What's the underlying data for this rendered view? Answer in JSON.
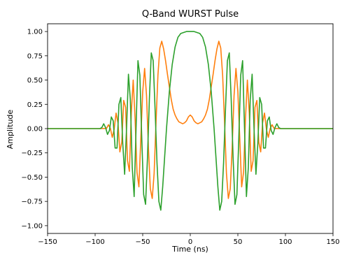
{
  "chart_data": {
    "type": "line",
    "title": "Q-Band WURST Pulse",
    "xlabel": "Time (ns)",
    "ylabel": "Amplitude",
    "xlim": [
      -150,
      150
    ],
    "ylim": [
      -1.08,
      1.08
    ],
    "grid": false,
    "xticks": [
      -150,
      -100,
      -50,
      0,
      50,
      100,
      150
    ],
    "yticks": [
      -1.0,
      -0.75,
      -0.5,
      -0.25,
      0.0,
      0.25,
      0.5,
      0.75,
      1.0
    ],
    "xtick_labels": [
      "−150",
      "−100",
      "−50",
      "0",
      "50",
      "100",
      "150"
    ],
    "ytick_labels": [
      "−1.00",
      "−0.75",
      "−0.50",
      "−0.25",
      "0.00",
      "0.25",
      "0.50",
      "0.75",
      "1.00"
    ],
    "series": [
      {
        "color": "#ff7f0e",
        "x": [
          -150,
          -100,
          -95,
          -90,
          -88,
          -86,
          -84,
          -82,
          -80,
          -78,
          -76,
          -74,
          -72,
          -70,
          -68,
          -66,
          -64,
          -62,
          -60,
          -58,
          -56,
          -54,
          -52,
          -50,
          -48,
          -46,
          -44,
          -42,
          -40,
          -38,
          -36,
          -34,
          -32,
          -30,
          -28,
          -26,
          -24,
          -22,
          -20,
          -18,
          -16,
          -14,
          -12,
          -10,
          -8,
          -6,
          -4,
          -2,
          0,
          2,
          4,
          6,
          8,
          10,
          12,
          14,
          16,
          18,
          20,
          22,
          24,
          26,
          28,
          30,
          32,
          34,
          36,
          38,
          40,
          42,
          44,
          46,
          48,
          50,
          52,
          54,
          56,
          58,
          60,
          62,
          64,
          66,
          68,
          70,
          72,
          74,
          76,
          78,
          80,
          82,
          84,
          86,
          88,
          90,
          95,
          100,
          150
        ],
        "y": [
          0.0,
          0.0,
          0.0,
          0.001,
          0.003,
          0.04,
          0.003,
          -0.09,
          -0.006,
          0.16,
          0.06,
          -0.24,
          -0.14,
          0.29,
          0.22,
          -0.33,
          -0.44,
          0.16,
          0.5,
          0.1,
          -0.45,
          -0.6,
          -0.1,
          0.38,
          0.62,
          0.34,
          -0.2,
          -0.62,
          -0.72,
          -0.46,
          0.07,
          0.55,
          0.83,
          0.9,
          0.82,
          0.7,
          0.56,
          0.43,
          0.3,
          0.2,
          0.14,
          0.1,
          0.07,
          0.06,
          0.05,
          0.06,
          0.08,
          0.12,
          0.14,
          0.12,
          0.08,
          0.06,
          0.05,
          0.06,
          0.07,
          0.1,
          0.14,
          0.2,
          0.3,
          0.43,
          0.56,
          0.7,
          0.82,
          0.9,
          0.83,
          0.55,
          0.07,
          -0.46,
          -0.72,
          -0.62,
          -0.2,
          0.34,
          0.62,
          0.38,
          -0.1,
          -0.6,
          -0.45,
          0.1,
          0.5,
          0.16,
          -0.44,
          -0.33,
          0.22,
          0.29,
          -0.14,
          -0.24,
          0.06,
          0.16,
          -0.006,
          -0.09,
          0.003,
          0.04,
          0.003,
          0.001,
          0.0,
          0.0,
          0.0
        ]
      },
      {
        "color": "#2ca02c",
        "x": [
          -150,
          -100,
          -95,
          -93,
          -91,
          -89,
          -87,
          -85,
          -83,
          -81,
          -79,
          -77,
          -75,
          -73,
          -71,
          -69,
          -67,
          -65,
          -63,
          -61,
          -59,
          -57,
          -55,
          -53,
          -51,
          -49,
          -47,
          -45,
          -43,
          -41,
          -39,
          -37,
          -35,
          -33,
          -31,
          -29,
          -27,
          -25,
          -22,
          -19,
          -16,
          -13,
          -10,
          -7,
          -4,
          -1,
          0,
          1,
          4,
          7,
          10,
          13,
          16,
          19,
          22,
          25,
          27,
          29,
          31,
          33,
          35,
          37,
          39,
          41,
          43,
          45,
          47,
          49,
          51,
          53,
          55,
          57,
          59,
          61,
          63,
          65,
          67,
          69,
          71,
          73,
          75,
          77,
          79,
          81,
          83,
          85,
          87,
          89,
          91,
          93,
          95,
          100,
          150
        ],
        "y": [
          0.0,
          0.0,
          0.0,
          0.01,
          0.05,
          0.01,
          -0.06,
          -0.02,
          0.12,
          0.08,
          -0.2,
          -0.2,
          0.25,
          0.32,
          -0.15,
          -0.47,
          0.0,
          0.56,
          0.3,
          -0.4,
          -0.7,
          0.0,
          0.7,
          0.55,
          -0.1,
          -0.68,
          -0.78,
          -0.3,
          0.3,
          0.78,
          0.7,
          0.2,
          -0.35,
          -0.75,
          -0.84,
          -0.6,
          -0.3,
          0.0,
          0.38,
          0.66,
          0.84,
          0.94,
          0.98,
          0.99,
          1.0,
          1.0,
          1.0,
          1.0,
          1.0,
          0.99,
          0.98,
          0.94,
          0.84,
          0.66,
          0.38,
          0.0,
          -0.3,
          -0.6,
          -0.84,
          -0.75,
          -0.35,
          0.2,
          0.7,
          0.78,
          0.3,
          -0.3,
          -0.78,
          -0.68,
          -0.1,
          0.55,
          0.7,
          0.0,
          -0.7,
          -0.4,
          0.3,
          0.56,
          0.0,
          -0.47,
          -0.15,
          0.32,
          0.25,
          -0.2,
          -0.2,
          0.08,
          0.12,
          -0.02,
          -0.06,
          0.01,
          0.05,
          0.01,
          0.0,
          0.0,
          0.0
        ]
      }
    ]
  }
}
